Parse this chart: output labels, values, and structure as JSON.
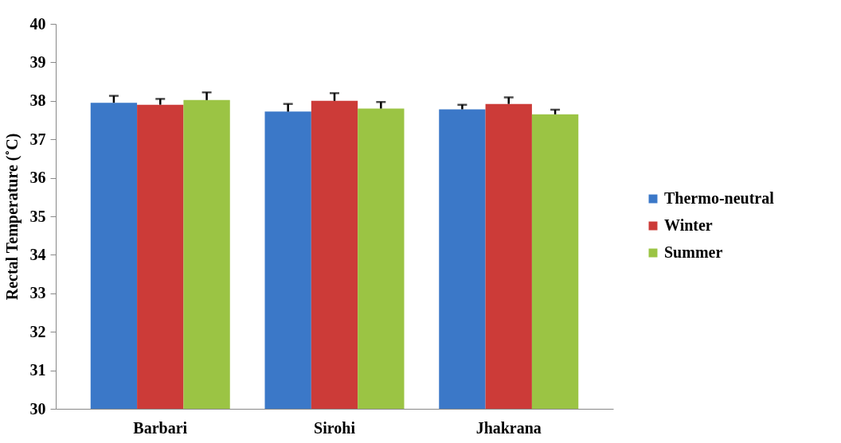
{
  "chart_data": {
    "type": "bar",
    "ylabel": "Rectal Temperature (˚C)",
    "categories": [
      "Barbari",
      "Sirohi",
      "Jhakrana"
    ],
    "series": [
      {
        "name": "Thermo-neutral",
        "color": "#3b78c8",
        "values": [
          37.95,
          37.72,
          37.78
        ],
        "errors": [
          0.18,
          0.2,
          0.12
        ]
      },
      {
        "name": "Winter",
        "color": "#cc3b38",
        "values": [
          37.9,
          38.0,
          37.92
        ],
        "errors": [
          0.15,
          0.2,
          0.17
        ]
      },
      {
        "name": "Summer",
        "color": "#9bc444",
        "values": [
          38.02,
          37.8,
          37.65
        ],
        "errors": [
          0.2,
          0.17,
          0.12
        ]
      }
    ],
    "ylim": [
      30,
      40
    ],
    "yticks": [
      30,
      31,
      32,
      33,
      34,
      35,
      36,
      37,
      38,
      39,
      40
    ],
    "legend": "right"
  }
}
